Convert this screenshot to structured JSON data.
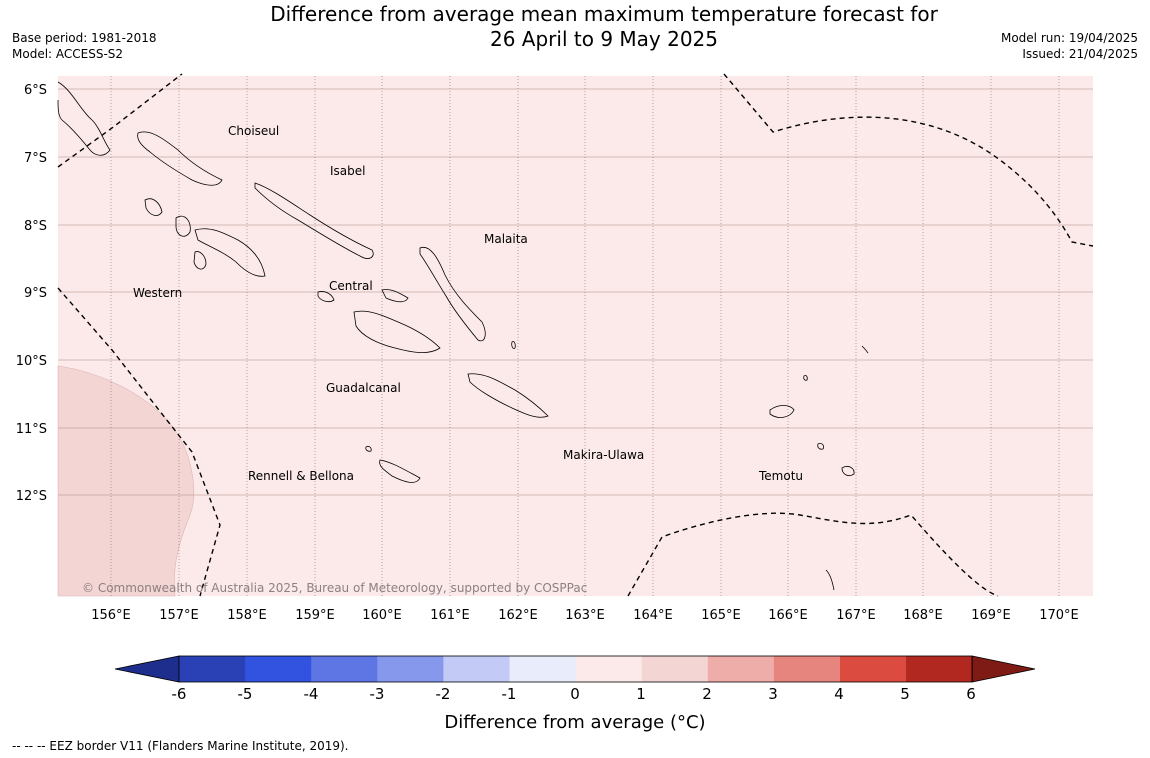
{
  "title": {
    "line1": "Difference from average mean maximum temperature forecast for",
    "line2": "26 April to 9 May 2025"
  },
  "meta_left": {
    "base_period": "Base period: 1981-2018",
    "model": "Model: ACCESS-S2"
  },
  "meta_right": {
    "model_run": "Model run: 19/04/2025",
    "issued": "Issued: 21/04/2025"
  },
  "map": {
    "lat_labels": [
      "6°S",
      "7°S",
      "8°S",
      "9°S",
      "10°S",
      "11°S",
      "12°S"
    ],
    "lon_labels": [
      "156°E",
      "157°E",
      "158°E",
      "159°E",
      "160°E",
      "161°E",
      "162°E",
      "163°E",
      "164°E",
      "165°E",
      "166°E",
      "167°E",
      "168°E",
      "169°E",
      "170°E"
    ],
    "regions": [
      "Choiseul",
      "Isabel",
      "Malaita",
      "Western",
      "Central",
      "Guadalcanal",
      "Makira-Ulawa",
      "Rennell & Bellona",
      "Temotu"
    ],
    "copyright": "© Commonwealth of Australia 2025, Bureau of Meteorology, supported by COSPPac",
    "background_color": "#fbeae9",
    "warm_patch_color": "#f3d5d4"
  },
  "colorbar": {
    "label": "Difference from average (°C)",
    "ticks": [
      "-6",
      "-5",
      "-4",
      "-3",
      "-2",
      "-1",
      "0",
      "1",
      "2",
      "3",
      "4",
      "5",
      "6"
    ],
    "colors": [
      "#1e2e8c",
      "#2a41b5",
      "#3153df",
      "#5d76e4",
      "#8598ec",
      "#c2caf5",
      "#e9ecfb",
      "#fbeae9",
      "#f3d5d4",
      "#efadaa",
      "#e6857e",
      "#dc4b40",
      "#b0281f",
      "#7e1b14"
    ]
  },
  "footnote": "--  --  -- EEZ border V11 (Flanders Marine Institute, 2019)."
}
